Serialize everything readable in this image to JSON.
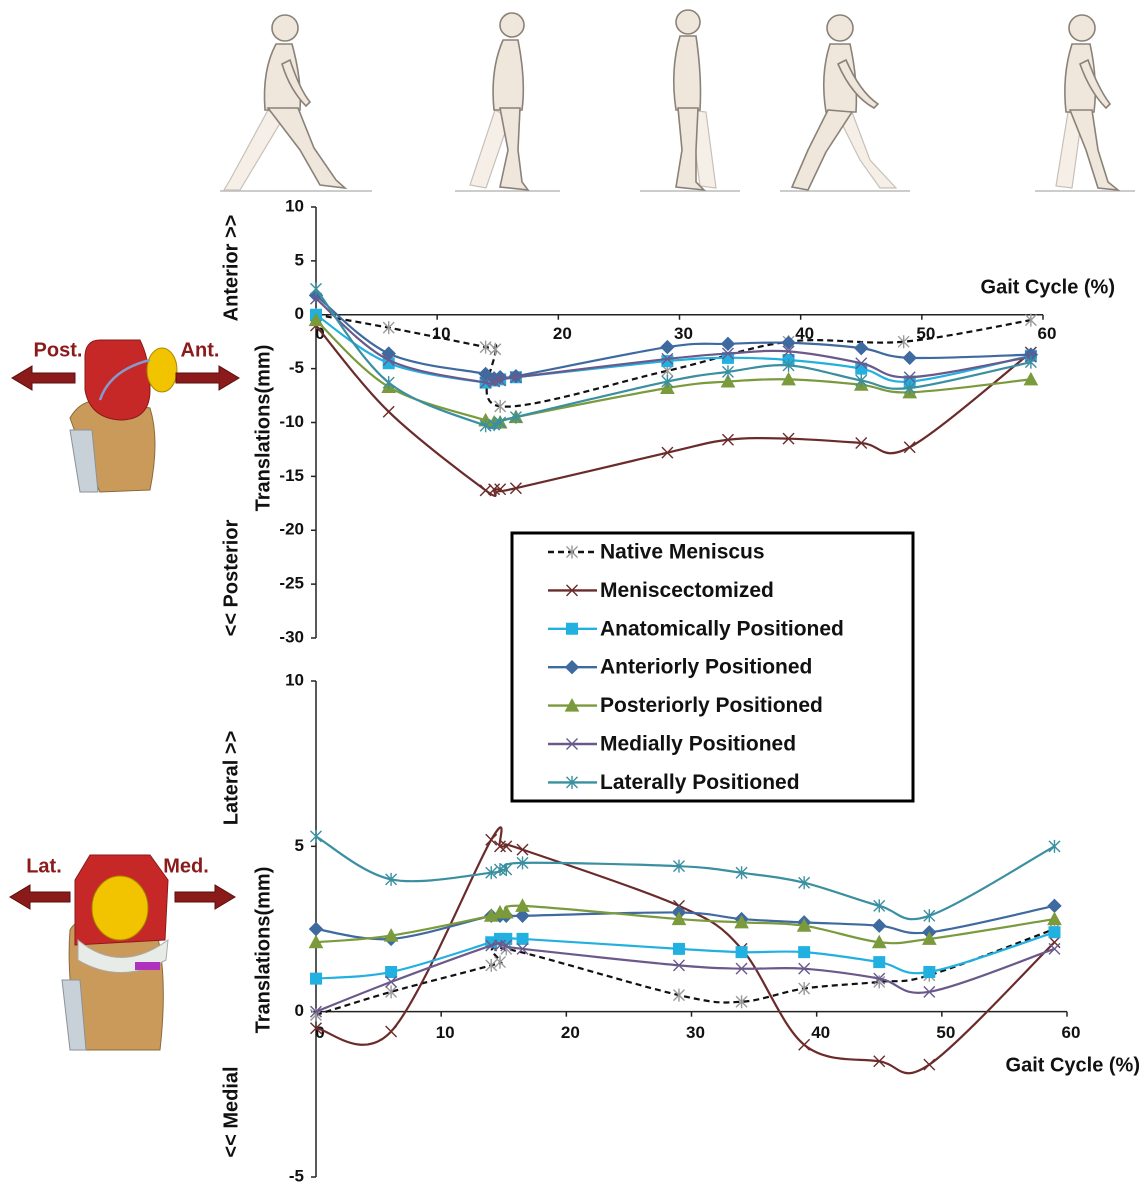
{
  "chart_data": [
    {
      "type": "line",
      "x_label": "Gait Cycle (%)",
      "y_label": "Translations(mm)",
      "positive_direction": "Anterior >>",
      "negative_direction": "<< Posterior",
      "knee_left_label": "Post.",
      "knee_right_label": "Ant.",
      "xlim": [
        0,
        60
      ],
      "xticks": [
        0,
        10,
        20,
        30,
        40,
        50,
        60
      ],
      "ylim": [
        -30,
        10
      ],
      "yticks": [
        10,
        5,
        0,
        -5,
        -10,
        -15,
        -20,
        -25,
        -30
      ],
      "series": [
        {
          "name": "Native Meniscus",
          "color": "#111111",
          "marker": "asterisk",
          "dashed": true,
          "x": [
            0,
            6,
            14,
            14.8,
            15.2,
            29,
            39,
            48.5,
            59
          ],
          "values": [
            0,
            -1.2,
            -3.0,
            -3.2,
            -8.5,
            -5.2,
            -2.5,
            -2.5,
            -0.5
          ]
        },
        {
          "name": "Meniscectomized",
          "color": "#6b2b2b",
          "marker": "x",
          "x": [
            0,
            6,
            14,
            14.7,
            15.2,
            16.5,
            29,
            34,
            39,
            45,
            49,
            59
          ],
          "values": [
            -1,
            -9,
            -16.3,
            -16.2,
            -16.2,
            -16.1,
            -12.8,
            -11.6,
            -11.5,
            -11.9,
            -12.3,
            -3.5
          ]
        },
        {
          "name": "Anatomically Positioned",
          "color": "#22b0e0",
          "marker": "square",
          "x": [
            0,
            6,
            14,
            14.7,
            15.2,
            16.5,
            29,
            34,
            39,
            45,
            49,
            59
          ],
          "values": [
            0,
            -4.5,
            -6.3,
            -6.1,
            -6.0,
            -5.8,
            -4.3,
            -4.0,
            -4.2,
            -5.0,
            -6.2,
            -3.8
          ]
        },
        {
          "name": "Anteriorly Positioned",
          "color": "#3e6aa0",
          "marker": "diamond",
          "x": [
            0,
            6,
            14,
            14.7,
            15.2,
            16.5,
            29,
            34,
            39,
            45,
            49,
            59
          ],
          "values": [
            1.8,
            -3.6,
            -5.5,
            -5.9,
            -5.8,
            -5.7,
            -3.0,
            -2.7,
            -2.6,
            -3.1,
            -4.0,
            -3.7
          ]
        },
        {
          "name": "Posteriorly Positioned",
          "color": "#7a9a3c",
          "marker": "triangle",
          "x": [
            0,
            6,
            14,
            14.7,
            15.2,
            16.5,
            29,
            34,
            39,
            45,
            49,
            59
          ],
          "values": [
            -0.5,
            -6.7,
            -9.8,
            -10.0,
            -10.0,
            -9.5,
            -6.8,
            -6.2,
            -6.0,
            -6.5,
            -7.2,
            -6.0
          ]
        },
        {
          "name": "Medially Positioned",
          "color": "#6a5a8c",
          "marker": "x",
          "x": [
            0,
            6,
            14,
            14.7,
            15.2,
            16.5,
            29,
            34,
            39,
            45,
            49,
            59
          ],
          "values": [
            1.5,
            -4.2,
            -6.3,
            -6.2,
            -6.1,
            -5.8,
            -4.1,
            -3.6,
            -3.4,
            -4.5,
            -5.8,
            -3.9
          ]
        },
        {
          "name": "Laterally Positioned",
          "color": "#3a8fa0",
          "marker": "asterisk",
          "x": [
            0,
            6,
            14,
            14.7,
            15.2,
            16.5,
            29,
            34,
            39,
            45,
            49,
            59
          ],
          "values": [
            2.4,
            -6.3,
            -10.3,
            -10.2,
            -10.0,
            -9.5,
            -6.2,
            -5.3,
            -4.7,
            -6.1,
            -6.8,
            -4.4
          ]
        }
      ]
    },
    {
      "type": "line",
      "x_label": "Gait Cycle (%)",
      "y_label": "Translations(mm)",
      "positive_direction": "Lateral >>",
      "negative_direction": "<< Medial",
      "knee_left_label": "Lat.",
      "knee_right_label": "Med.",
      "xlim": [
        0,
        60
      ],
      "xticks": [
        0,
        10,
        20,
        30,
        40,
        50,
        60
      ],
      "ylim": [
        -5,
        10
      ],
      "yticks": [
        10,
        5,
        0,
        -5
      ],
      "series": [
        {
          "color": "#111111",
          "marker": "asterisk",
          "dashed": true,
          "x": [
            0,
            6,
            14,
            14.7,
            15.2,
            29,
            34,
            39,
            45,
            49,
            59
          ],
          "values": [
            -0.1,
            0.6,
            1.4,
            1.5,
            1.9,
            0.5,
            0.3,
            0.7,
            0.9,
            1.1,
            2.5
          ]
        },
        {
          "color": "#6b2b2b",
          "marker": "x",
          "x": [
            0,
            6,
            14,
            14.7,
            15.2,
            16.5,
            29,
            34,
            39,
            45,
            49,
            59
          ],
          "values": [
            -0.5,
            -0.6,
            5.2,
            5.0,
            5.0,
            4.9,
            3.2,
            1.9,
            -1.0,
            -1.5,
            -1.6,
            2.1
          ]
        },
        {
          "color": "#22b0e0",
          "marker": "square",
          "x": [
            0,
            6,
            14,
            14.7,
            15.2,
            16.5,
            29,
            34,
            39,
            45,
            49,
            59
          ],
          "values": [
            1.0,
            1.2,
            2.1,
            2.2,
            2.2,
            2.2,
            1.9,
            1.8,
            1.8,
            1.5,
            1.2,
            2.4
          ]
        },
        {
          "color": "#3e6aa0",
          "marker": "diamond",
          "x": [
            0,
            6,
            14,
            14.7,
            15.2,
            16.5,
            29,
            34,
            39,
            45,
            49,
            59
          ],
          "values": [
            2.5,
            2.2,
            2.9,
            2.9,
            2.9,
            2.9,
            3.0,
            2.8,
            2.7,
            2.6,
            2.4,
            3.2
          ]
        },
        {
          "color": "#7a9a3c",
          "marker": "triangle",
          "x": [
            0,
            6,
            14,
            14.7,
            15.2,
            16.5,
            29,
            34,
            39,
            45,
            49,
            59
          ],
          "values": [
            2.1,
            2.3,
            2.9,
            3.0,
            3.0,
            3.2,
            2.8,
            2.7,
            2.6,
            2.1,
            2.2,
            2.8
          ]
        },
        {
          "color": "#6a5a8c",
          "marker": "x",
          "x": [
            0,
            6,
            14,
            14.7,
            15.2,
            16.5,
            29,
            34,
            39,
            45,
            49,
            59
          ],
          "values": [
            0.0,
            0.9,
            2.0,
            2.0,
            2.0,
            1.9,
            1.4,
            1.3,
            1.3,
            1.0,
            0.6,
            1.9
          ]
        },
        {
          "color": "#3a8fa0",
          "marker": "asterisk",
          "x": [
            0,
            6,
            14,
            14.7,
            15.2,
            16.5,
            29,
            34,
            39,
            45,
            49,
            59
          ],
          "values": [
            5.3,
            4.0,
            4.2,
            4.3,
            4.3,
            4.5,
            4.4,
            4.2,
            3.9,
            3.2,
            2.9,
            5.0
          ]
        }
      ]
    }
  ]
}
